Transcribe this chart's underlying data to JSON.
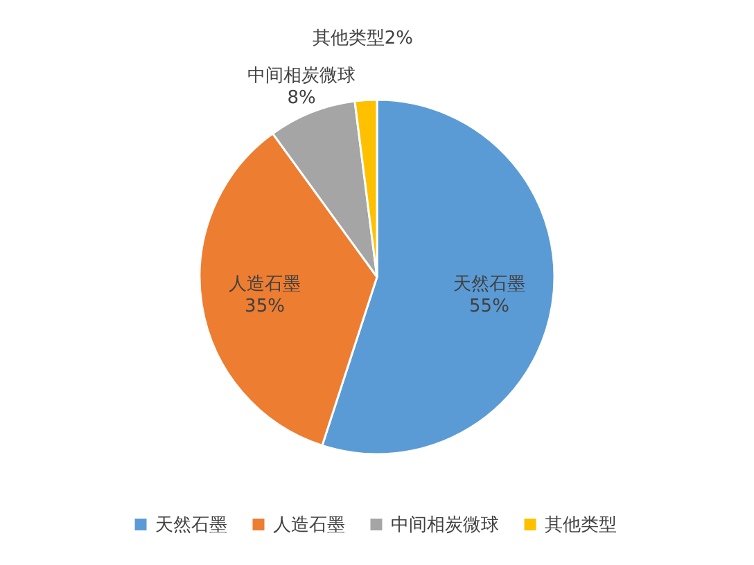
{
  "chart_data": {
    "type": "pie",
    "categories": [
      "天然石墨",
      "人造石墨",
      "中间相炭微球",
      "其他类型"
    ],
    "values": [
      55,
      35,
      8,
      2
    ],
    "colors": [
      "#5b9bd5",
      "#ed7d31",
      "#a5a5a5",
      "#ffc000"
    ],
    "value_labels": [
      "55%",
      "35%",
      "8%",
      "2%"
    ],
    "legend": "bottom"
  }
}
